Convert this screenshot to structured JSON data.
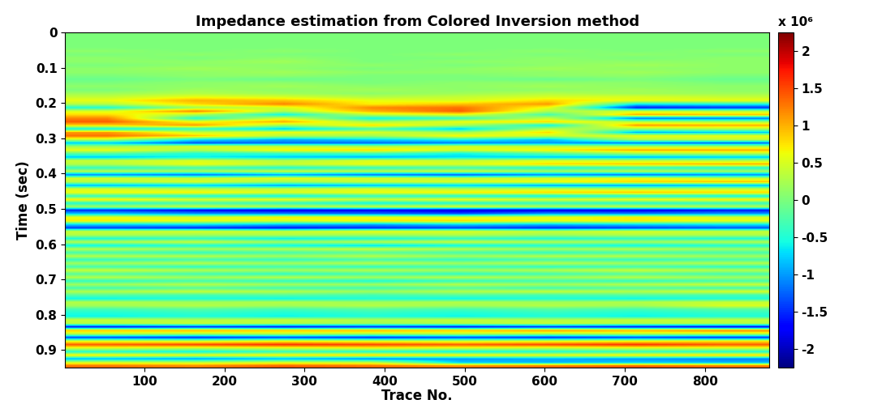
{
  "chart_data": {
    "type": "heatmap",
    "title": "Impedance estimation from Colored Inversion method",
    "x_label": "Trace No.",
    "y_label": "Time (sec)",
    "xlim": [
      1,
      880
    ],
    "ylim": [
      0.95,
      0
    ],
    "xticks": [
      100,
      200,
      300,
      400,
      500,
      600,
      700,
      800
    ],
    "yticks": [
      0,
      0.1,
      0.2,
      0.3,
      0.4,
      0.5,
      0.6,
      0.7,
      0.8,
      0.9
    ],
    "x": [
      55,
      165,
      275,
      385,
      495,
      605,
      715,
      825
    ],
    "y": [
      0.005,
      0.015,
      0.025,
      0.035,
      0.045,
      0.055,
      0.065,
      0.075,
      0.085,
      0.095,
      0.105,
      0.115,
      0.125,
      0.135,
      0.145,
      0.155,
      0.165,
      0.175,
      0.185,
      0.195,
      0.205,
      0.215,
      0.225,
      0.235,
      0.245,
      0.255,
      0.265,
      0.275,
      0.285,
      0.295,
      0.305,
      0.315,
      0.325,
      0.335,
      0.345,
      0.355,
      0.365,
      0.375,
      0.385,
      0.395,
      0.405,
      0.415,
      0.425,
      0.435,
      0.445,
      0.455,
      0.465,
      0.475,
      0.485,
      0.495,
      0.505,
      0.515,
      0.525,
      0.535,
      0.545,
      0.555,
      0.565,
      0.575,
      0.585,
      0.595,
      0.605,
      0.615,
      0.625,
      0.635,
      0.645,
      0.655,
      0.665,
      0.675,
      0.685,
      0.695,
      0.705,
      0.715,
      0.725,
      0.735,
      0.745,
      0.755,
      0.765,
      0.775,
      0.785,
      0.795,
      0.805,
      0.815,
      0.825,
      0.835,
      0.845,
      0.855,
      0.865,
      0.875,
      0.885,
      0.895,
      0.905,
      0.915,
      0.925,
      0.935,
      0.945
    ],
    "cells": [
      [
        0,
        0,
        0,
        0,
        0,
        0,
        0,
        0
      ],
      [
        0,
        0,
        0,
        0,
        0,
        0,
        0,
        0
      ],
      [
        0,
        0,
        0,
        0,
        0,
        0,
        0,
        0
      ],
      [
        0,
        0,
        0,
        0,
        0,
        0,
        0,
        0
      ],
      [
        0,
        0,
        0,
        0,
        0,
        0,
        0,
        0
      ],
      [
        0.1,
        0,
        0.1,
        0,
        0,
        0.1,
        0,
        0.1
      ],
      [
        0,
        0.1,
        0,
        0,
        0.1,
        0,
        0.1,
        0
      ],
      [
        0.1,
        0,
        0.1,
        0,
        0,
        0.1,
        0,
        0.1
      ],
      [
        0.1,
        0.1,
        0.2,
        0,
        0.1,
        0.1,
        0.1,
        0.1
      ],
      [
        0,
        0.1,
        0.1,
        0.1,
        0,
        0.1,
        0.2,
        0.1
      ],
      [
        0.1,
        0.2,
        0.1,
        0,
        0.1,
        0.2,
        0.1,
        0.1
      ],
      [
        0.1,
        0.1,
        0.2,
        0.1,
        0.1,
        0.1,
        0.2,
        0.1
      ],
      [
        0,
        0.1,
        0.1,
        0,
        0,
        0.1,
        0.1,
        0
      ],
      [
        -0.1,
        0,
        -0.1,
        0,
        0,
        -0.1,
        0,
        -0.1
      ],
      [
        0,
        0.1,
        0.1,
        0,
        0.1,
        0.1,
        0.1,
        0
      ],
      [
        0.1,
        0.1,
        0.2,
        0.1,
        0.1,
        0.2,
        0.1,
        0.1
      ],
      [
        0,
        0.2,
        0.1,
        0.2,
        0.1,
        0.1,
        0.2,
        0.1
      ],
      [
        0.2,
        0.3,
        0.2,
        0.1,
        0.2,
        0.3,
        0.2,
        0.2
      ],
      [
        0.4,
        0.6,
        0.5,
        0.3,
        0.4,
        0.5,
        0.5,
        0.4
      ],
      [
        0.6,
        1.0,
        0.9,
        0.6,
        0.5,
        0.8,
        0.6,
        0.6
      ],
      [
        0.3,
        0.8,
        1.2,
        0.7,
        0.9,
        1.1,
        -0.6,
        -0.5
      ],
      [
        -0.5,
        0.2,
        0.5,
        1.2,
        1.3,
        0.6,
        -1.6,
        -1.5
      ],
      [
        0.5,
        1.2,
        0.3,
        1.0,
        1.4,
        0.3,
        0.4,
        0.3
      ],
      [
        0.8,
        0.3,
        -0.6,
        0.4,
        0.6,
        -0.3,
        1.0,
        0.9
      ],
      [
        1.2,
        -0.5,
        0.5,
        -0.6,
        -0.4,
        0.4,
        -1.2,
        -1.2
      ],
      [
        1.4,
        0.6,
        1.0,
        0.2,
        0.6,
        0.8,
        0.3,
        0.2
      ],
      [
        0.8,
        1.1,
        0.2,
        0.8,
        0.3,
        -0.6,
        1.1,
        1.0
      ],
      [
        -0.6,
        -0.4,
        -0.8,
        -0.3,
        -0.8,
        0.3,
        0.2,
        0.3
      ],
      [
        1.1,
        0.4,
        0.6,
        0.5,
        0.2,
        0.8,
        -0.9,
        -0.8
      ],
      [
        1.3,
        0.9,
        0.3,
        0.2,
        0.7,
        0.4,
        0.6,
        0.6
      ],
      [
        0.4,
        -0.6,
        -0.9,
        -0.7,
        -0.5,
        -0.8,
        0.3,
        0.4
      ],
      [
        -0.8,
        -1.3,
        -1.2,
        -1.2,
        -1.1,
        -1.0,
        -1.1,
        -1.2
      ],
      [
        0.2,
        0.5,
        0.4,
        0.3,
        0.5,
        0.4,
        0.3,
        0.3
      ],
      [
        0.6,
        0.3,
        0.7,
        0.8,
        0.5,
        0.7,
        1.0,
        1.0
      ],
      [
        -0.2,
        -0.5,
        -0.4,
        -0.3,
        -0.6,
        -0.2,
        0.2,
        0.3
      ],
      [
        -0.8,
        -0.6,
        -0.8,
        -0.9,
        -0.7,
        -0.8,
        -0.9,
        -0.8
      ],
      [
        0.4,
        0.5,
        0.3,
        0.5,
        0.4,
        0.5,
        0.4,
        0.3
      ],
      [
        0.3,
        0.6,
        0.4,
        0.6,
        0.5,
        0.8,
        0.9,
        1.0
      ],
      [
        -0.4,
        -0.3,
        -0.5,
        -0.4,
        -0.3,
        -0.5,
        -0.4,
        -0.5
      ],
      [
        0.3,
        0.2,
        0.4,
        0.3,
        0.4,
        0.2,
        0.3,
        0.2
      ],
      [
        -1.1,
        -1.2,
        -1.0,
        -1.2,
        -1.3,
        -1.1,
        -1.2,
        -1.1
      ],
      [
        0.5,
        0.4,
        0.6,
        0.5,
        0.4,
        0.5,
        0.6,
        0.4
      ],
      [
        0.3,
        0.5,
        0.2,
        0.4,
        0.5,
        0.6,
        0.8,
        0.9
      ],
      [
        -0.9,
        -0.8,
        -1.0,
        -0.9,
        -0.8,
        -1.0,
        -1.0,
        -0.9
      ],
      [
        0.5,
        0.3,
        0.4,
        0.5,
        0.3,
        0.4,
        0.3,
        0.4
      ],
      [
        0.6,
        0.7,
        0.5,
        0.6,
        0.7,
        0.8,
        0.9,
        0.8
      ],
      [
        -0.4,
        -0.5,
        -0.6,
        -0.4,
        -0.5,
        -0.6,
        -0.5,
        -0.6
      ],
      [
        0.7,
        0.5,
        0.6,
        0.4,
        0.6,
        0.5,
        0.6,
        0.7
      ],
      [
        -0.5,
        -0.3,
        -0.4,
        -0.6,
        -0.5,
        -0.4,
        -0.5,
        -0.4
      ],
      [
        0.2,
        0.4,
        0.3,
        0.4,
        0.5,
        0.3,
        0.4,
        0.3
      ],
      [
        -1.5,
        -1.7,
        -1.8,
        -1.7,
        -1.9,
        -1.8,
        -1.8,
        -1.6
      ],
      [
        -0.8,
        -1.0,
        -1.1,
        -1.2,
        -1.3,
        -1.0,
        -1.1,
        -1.0
      ],
      [
        0.6,
        0.5,
        0.7,
        0.6,
        0.5,
        0.6,
        0.7,
        0.5
      ],
      [
        0.7,
        0.6,
        0.5,
        0.7,
        0.8,
        0.6,
        0.7,
        0.6
      ],
      [
        -0.7,
        -0.6,
        -0.8,
        -0.9,
        -0.7,
        -0.8,
        -0.7,
        -0.6
      ],
      [
        -1.4,
        -1.5,
        -1.6,
        -1.5,
        -1.4,
        -1.5,
        -1.4,
        -1.3
      ],
      [
        0.4,
        0.5,
        0.4,
        0.6,
        0.5,
        0.4,
        0.5,
        0.4
      ],
      [
        0.3,
        0.2,
        0.3,
        0.2,
        0.3,
        0.2,
        0.3,
        0.3
      ],
      [
        -0.5,
        -0.4,
        -0.6,
        -0.5,
        -0.4,
        -0.5,
        -0.4,
        -0.5
      ],
      [
        0.3,
        0.4,
        0.2,
        0.3,
        0.4,
        0.3,
        0.2,
        0.3
      ],
      [
        -0.6,
        -0.5,
        -0.6,
        -0.7,
        -0.6,
        -0.5,
        -0.6,
        -0.5
      ],
      [
        0.3,
        0.2,
        0.3,
        0.4,
        0.3,
        0.2,
        0.3,
        0.2
      ],
      [
        -0.3,
        -0.4,
        -0.3,
        -0.2,
        -0.3,
        -0.4,
        -0.3,
        -0.3
      ],
      [
        0.3,
        0.3,
        0.2,
        0.3,
        0.2,
        0.3,
        0.3,
        0.2
      ],
      [
        -0.4,
        -0.3,
        -0.4,
        -0.3,
        -0.4,
        -0.3,
        -0.4,
        -0.3
      ],
      [
        0.2,
        0.3,
        0.2,
        0.3,
        0.2,
        0.3,
        0.2,
        0.3
      ],
      [
        -0.3,
        -0.4,
        -0.3,
        -0.4,
        -0.3,
        -0.4,
        -0.3,
        -0.4
      ],
      [
        0.4,
        0.3,
        0.2,
        0.3,
        0.2,
        0.3,
        0.4,
        0.3
      ],
      [
        -0.2,
        -0.3,
        -0.4,
        -0.3,
        -0.4,
        -0.3,
        -0.2,
        -0.3
      ],
      [
        0.3,
        0.2,
        0.3,
        0.2,
        0.3,
        0.2,
        0.3,
        0.2
      ],
      [
        -0.4,
        -0.3,
        -0.4,
        -0.5,
        -0.4,
        -0.3,
        -0.4,
        -0.3
      ],
      [
        0.2,
        0.3,
        0.2,
        0.2,
        0.3,
        0.2,
        0.3,
        0.4
      ],
      [
        -0.3,
        -0.2,
        -0.3,
        -0.3,
        -0.2,
        -0.3,
        -0.2,
        -0.3
      ],
      [
        0.3,
        0.4,
        0.3,
        0.2,
        0.3,
        0.4,
        0.3,
        0.5
      ],
      [
        -0.2,
        -0.3,
        -0.2,
        -0.3,
        -0.2,
        -0.3,
        -0.2,
        -0.3
      ],
      [
        -0.6,
        -0.5,
        -0.6,
        -0.5,
        -0.6,
        -0.5,
        -0.6,
        -0.5
      ],
      [
        0.3,
        0.2,
        0.3,
        0.2,
        0.3,
        0.2,
        0.3,
        0.4
      ],
      [
        0.2,
        0.3,
        0.2,
        0.3,
        0.2,
        0.3,
        0.2,
        0.5
      ],
      [
        -0.3,
        -0.2,
        -0.3,
        -0.2,
        -0.3,
        -0.2,
        -0.3,
        -0.2
      ],
      [
        -0.5,
        -0.4,
        -0.5,
        -0.4,
        -0.5,
        -0.4,
        -0.5,
        -0.4
      ],
      [
        -0.6,
        -0.5,
        -0.6,
        -0.5,
        -0.6,
        -0.5,
        -0.6,
        -0.5
      ],
      [
        0.4,
        0.3,
        0.4,
        0.3,
        0.4,
        0.3,
        0.4,
        0.4
      ],
      [
        0.3,
        0.4,
        0.3,
        0.2,
        0.3,
        0.4,
        0.3,
        0.3
      ],
      [
        -1.6,
        -1.5,
        -1.6,
        -1.5,
        -1.6,
        -1.5,
        -1.6,
        -1.7
      ],
      [
        0.9,
        1.0,
        0.9,
        1.0,
        0.9,
        1.1,
        1.0,
        1.2
      ],
      [
        0.3,
        0.2,
        0.3,
        0.2,
        0.3,
        0.2,
        0.3,
        0.3
      ],
      [
        -1.4,
        -1.5,
        -1.4,
        -1.5,
        -1.4,
        -1.5,
        -1.4,
        -1.5
      ],
      [
        0.5,
        0.4,
        0.6,
        0.5,
        0.4,
        0.5,
        0.6,
        0.7
      ],
      [
        1.4,
        1.5,
        1.6,
        1.5,
        1.4,
        1.5,
        1.6,
        1.4
      ],
      [
        0.5,
        0.4,
        0.5,
        0.6,
        0.5,
        0.4,
        0.5,
        0.5
      ],
      [
        -0.5,
        -0.6,
        -0.4,
        -0.5,
        -0.6,
        -0.5,
        -0.4,
        -0.5
      ],
      [
        0.7,
        0.6,
        0.7,
        0.8,
        0.7,
        0.6,
        0.7,
        0.8
      ],
      [
        -0.9,
        -1.0,
        -0.9,
        -1.1,
        -1.0,
        -0.9,
        -1.0,
        -1.1
      ],
      [
        0.4,
        0.3,
        0.4,
        0.3,
        -0.8,
        -0.9,
        -0.8,
        -0.9
      ],
      [
        1.3,
        1.2,
        1.4,
        1.3,
        1.2,
        1.3,
        1.4,
        1.3
      ]
    ],
    "colorbar": {
      "range": [
        -2.25,
        2.25
      ],
      "ticks": [
        -2,
        -1.5,
        -1,
        -0.5,
        0,
        0.5,
        1,
        1.5,
        2
      ],
      "label": "x 10⁶"
    }
  }
}
